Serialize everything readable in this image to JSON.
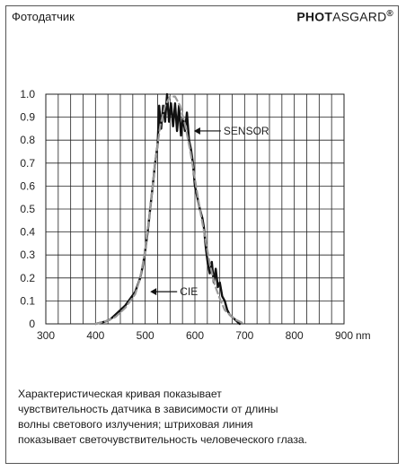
{
  "header": {
    "title": "Фотодатчик",
    "brand_bold": "PHOT",
    "brand_regular": "ASGARD",
    "brand_mark": "®"
  },
  "chart_data": {
    "type": "line",
    "title": "",
    "xlabel": "",
    "ylabel": "",
    "x_unit": "nm",
    "xlim": [
      300,
      900
    ],
    "ylim": [
      0,
      1.0
    ],
    "x_ticks": [
      300,
      400,
      500,
      600,
      700,
      800,
      900
    ],
    "x_tick_labels": [
      "300",
      "400",
      "500",
      "600",
      "700",
      "800",
      "900"
    ],
    "y_ticks": [
      0,
      0.1,
      0.2,
      0.3,
      0.4,
      0.5,
      0.6,
      0.7,
      0.8,
      0.9,
      1.0
    ],
    "y_tick_labels": [
      "0",
      "0.1",
      "0.2",
      "0.3",
      "0.4",
      "0.5",
      "0.6",
      "0.7",
      "0.8",
      "0.9",
      "1.0"
    ],
    "grid": true,
    "series": [
      {
        "name": "SENSOR",
        "style": "solid",
        "color": "#111111",
        "points": [
          [
            400,
            0
          ],
          [
            420,
            0.01
          ],
          [
            430,
            0.02
          ],
          [
            440,
            0.04
          ],
          [
            450,
            0.06
          ],
          [
            460,
            0.08
          ],
          [
            470,
            0.11
          ],
          [
            480,
            0.14
          ],
          [
            490,
            0.2
          ],
          [
            495,
            0.25
          ],
          [
            500,
            0.32
          ],
          [
            505,
            0.4
          ],
          [
            510,
            0.5
          ],
          [
            515,
            0.6
          ],
          [
            520,
            0.7
          ],
          [
            525,
            0.78
          ],
          [
            528,
            0.95
          ],
          [
            532,
            0.85
          ],
          [
            536,
            0.95
          ],
          [
            540,
            0.88
          ],
          [
            544,
            1.0
          ],
          [
            548,
            0.88
          ],
          [
            552,
            0.96
          ],
          [
            556,
            0.86
          ],
          [
            560,
            0.96
          ],
          [
            564,
            0.84
          ],
          [
            568,
            0.95
          ],
          [
            572,
            0.82
          ],
          [
            576,
            0.9
          ],
          [
            580,
            0.84
          ],
          [
            584,
            0.92
          ],
          [
            588,
            0.8
          ],
          [
            592,
            0.76
          ],
          [
            596,
            0.7
          ],
          [
            600,
            0.6
          ],
          [
            605,
            0.55
          ],
          [
            610,
            0.5
          ],
          [
            615,
            0.46
          ],
          [
            618,
            0.42
          ],
          [
            622,
            0.33
          ],
          [
            626,
            0.26
          ],
          [
            630,
            0.22
          ],
          [
            634,
            0.27
          ],
          [
            638,
            0.18
          ],
          [
            642,
            0.24
          ],
          [
            646,
            0.16
          ],
          [
            650,
            0.18
          ],
          [
            655,
            0.12
          ],
          [
            660,
            0.1
          ],
          [
            665,
            0.06
          ],
          [
            670,
            0.04
          ],
          [
            680,
            0.02
          ],
          [
            690,
            0.0
          ]
        ]
      },
      {
        "name": "CIE",
        "style": "dashed",
        "color": "#9a9a9a",
        "points": [
          [
            400,
            0
          ],
          [
            420,
            0.01
          ],
          [
            440,
            0.03
          ],
          [
            460,
            0.07
          ],
          [
            480,
            0.13
          ],
          [
            490,
            0.2
          ],
          [
            500,
            0.32
          ],
          [
            510,
            0.5
          ],
          [
            520,
            0.7
          ],
          [
            530,
            0.86
          ],
          [
            540,
            0.95
          ],
          [
            550,
            0.99
          ],
          [
            560,
            0.99
          ],
          [
            570,
            0.95
          ],
          [
            580,
            0.87
          ],
          [
            590,
            0.76
          ],
          [
            600,
            0.63
          ],
          [
            610,
            0.5
          ],
          [
            620,
            0.38
          ],
          [
            630,
            0.26
          ],
          [
            640,
            0.17
          ],
          [
            650,
            0.11
          ],
          [
            660,
            0.06
          ],
          [
            680,
            0.02
          ],
          [
            700,
            0.0
          ]
        ]
      }
    ],
    "annotations": [
      {
        "text": "SENSOR",
        "arrow_to": [
          598,
          0.84
        ]
      },
      {
        "text": "CIE",
        "arrow_to": [
          510,
          0.14
        ]
      }
    ]
  },
  "caption": {
    "lines": [
      "Характеристическая кривая показывает",
      "чувствительность датчика в зависимости от длины",
      "волны светового излучения; штриховая линия",
      "показывает светочувствительность человеческого глаза."
    ]
  }
}
